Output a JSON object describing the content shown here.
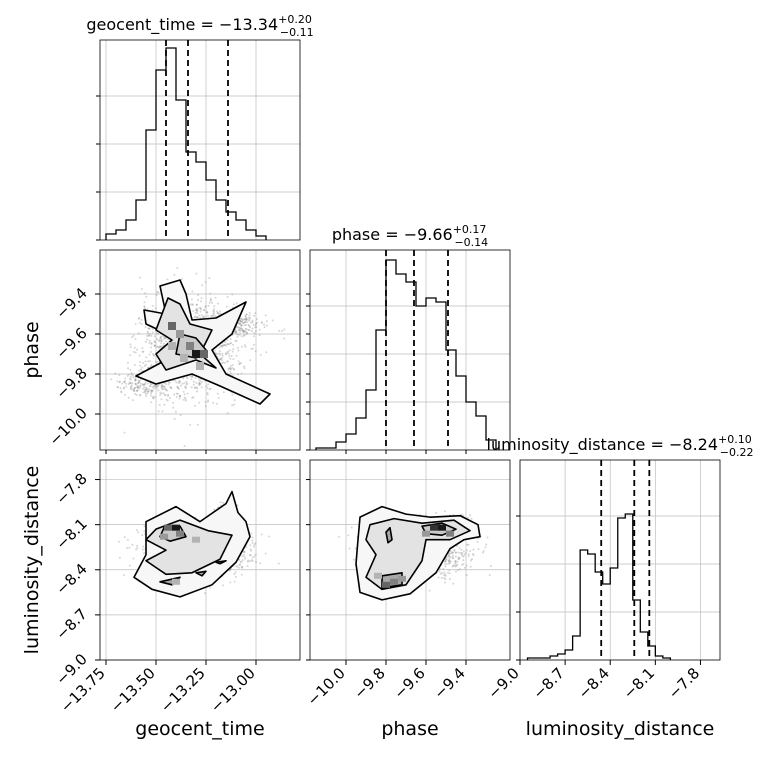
{
  "chart_data": {
    "type": "corner",
    "parameters": [
      "geocent_time",
      "phase",
      "luminosity_distance"
    ],
    "titles": [
      {
        "name": "geocent_time",
        "eq": " = −13.34",
        "plus": "+0.20",
        "minus": "−0.11"
      },
      {
        "name": "phase",
        "eq": " = −9.66",
        "plus": "+0.17",
        "minus": "−0.14"
      },
      {
        "name": "luminosity_distance",
        "eq": " = −8.24",
        "plus": "+0.10",
        "minus": "−0.22"
      }
    ],
    "ranges": [
      [
        -13.78,
        -12.78
      ],
      [
        -10.18,
        -9.18
      ],
      [
        -9.0,
        -7.67
      ]
    ],
    "ticks": [
      {
        "values": [
          -13.75,
          -13.5,
          -13.25,
          -13.0
        ],
        "labels": [
          "−13.75",
          "−13.50",
          "−13.25",
          "−13.00"
        ]
      },
      {
        "values": [
          -10.0,
          -9.8,
          -9.6,
          -9.4
        ],
        "labels": [
          "−10.0",
          "−9.8",
          "−9.6",
          "−9.4"
        ]
      },
      {
        "values": [
          -9.0,
          -8.7,
          -8.4,
          -8.1,
          -7.8
        ],
        "labels": [
          "−9.0",
          "−8.7",
          "−8.4",
          "−8.1",
          "−7.8"
        ]
      }
    ],
    "quantiles": [
      [
        -13.45,
        -13.34,
        -13.14
      ],
      [
        -9.8,
        -9.66,
        -9.49
      ],
      [
        -8.46,
        -8.24,
        -8.14
      ]
    ],
    "histograms": [
      {
        "bin_start": -13.75,
        "bin_width": 0.05,
        "counts": [
          0.03,
          0.05,
          0.1,
          0.2,
          0.55,
          0.85,
          0.96,
          0.7,
          0.44,
          0.39,
          0.3,
          0.2,
          0.14,
          0.1,
          0.05,
          0.02
        ]
      },
      {
        "bin_start": -10.15,
        "bin_width": 0.05,
        "counts": [
          0.01,
          0.01,
          0.04,
          0.08,
          0.16,
          0.3,
          0.6,
          0.95,
          0.88,
          0.84,
          0.72,
          0.76,
          0.74,
          0.5,
          0.37,
          0.24,
          0.17,
          0.05
        ]
      },
      {
        "bin_start": -8.95,
        "bin_width": 0.05,
        "counts": [
          0.01,
          0.01,
          0.01,
          0.02,
          0.03,
          0.05,
          0.12,
          0.55,
          0.53,
          0.44,
          0.38,
          0.46,
          0.71,
          0.73,
          0.3,
          0.14,
          0.07,
          0.02,
          0.01
        ]
      }
    ],
    "panels": [
      {
        "row": 1,
        "col": 0,
        "cluster": {
          "cx": -13.33,
          "cy": -9.67,
          "spread": [
            0.22,
            0.22
          ],
          "n": 1400
        },
        "extra": [
          {
            "cx": -13.1,
            "cy": -9.55,
            "spread": [
              0.15,
              0.05
            ],
            "n": 250
          },
          {
            "cx": -13.55,
            "cy": -9.85,
            "spread": [
              0.12,
              0.06
            ],
            "n": 200
          }
        ],
        "contours": [
          [
            [
              -13.48,
              -9.36
            ],
            [
              -13.38,
              -9.33
            ],
            [
              -13.35,
              -9.4
            ],
            [
              -13.32,
              -9.53
            ],
            [
              -13.2,
              -9.52
            ],
            [
              -13.05,
              -9.44
            ],
            [
              -13.12,
              -9.6
            ],
            [
              -13.22,
              -9.68
            ],
            [
              -13.15,
              -9.8
            ],
            [
              -12.93,
              -9.9
            ],
            [
              -12.98,
              -9.95
            ],
            [
              -13.18,
              -9.86
            ],
            [
              -13.32,
              -9.8
            ],
            [
              -13.5,
              -9.85
            ],
            [
              -13.6,
              -9.81
            ],
            [
              -13.45,
              -9.73
            ],
            [
              -13.4,
              -9.62
            ],
            [
              -13.55,
              -9.55
            ],
            [
              -13.56,
              -9.48
            ],
            [
              -13.45,
              -9.5
            ]
          ],
          [
            [
              -13.44,
              -9.42
            ],
            [
              -13.38,
              -9.45
            ],
            [
              -13.33,
              -9.55
            ],
            [
              -13.22,
              -9.58
            ],
            [
              -13.28,
              -9.7
            ],
            [
              -13.2,
              -9.77
            ],
            [
              -13.3,
              -9.73
            ],
            [
              -13.45,
              -9.78
            ],
            [
              -13.5,
              -9.7
            ],
            [
              -13.42,
              -9.63
            ],
            [
              -13.5,
              -9.58
            ]
          ],
          [
            [
              -13.38,
              -9.6
            ],
            [
              -13.3,
              -9.62
            ],
            [
              -13.25,
              -9.68
            ],
            [
              -13.3,
              -9.72
            ],
            [
              -13.4,
              -9.7
            ]
          ]
        ],
        "hist2d": [
          [
            -13.42,
            -9.56,
            0.6
          ],
          [
            -13.38,
            -9.6,
            0.4
          ],
          [
            -13.33,
            -9.66,
            0.5
          ],
          [
            -13.3,
            -9.7,
            0.9
          ],
          [
            -13.26,
            -9.7,
            0.6
          ],
          [
            -13.36,
            -9.72,
            0.3
          ],
          [
            -13.28,
            -9.76,
            0.3
          ],
          [
            -13.42,
            -9.66,
            0.3
          ]
        ]
      },
      {
        "row": 2,
        "col": 0,
        "cluster": {
          "cx": -13.3,
          "cy": -8.28,
          "spread": [
            0.22,
            0.15
          ],
          "n": 1400
        },
        "extra": [
          {
            "cx": -13.4,
            "cy": -8.45,
            "spread": [
              0.15,
              0.05
            ],
            "n": 300
          },
          {
            "cx": -13.15,
            "cy": -8.0,
            "spread": [
              0.05,
              0.06
            ],
            "n": 80
          }
        ],
        "contours": [
          [
            [
              -13.55,
              -8.08
            ],
            [
              -13.4,
              -7.98
            ],
            [
              -13.28,
              -8.08
            ],
            [
              -13.15,
              -7.96
            ],
            [
              -13.12,
              -7.88
            ],
            [
              -13.09,
              -8.02
            ],
            [
              -13.05,
              -8.08
            ],
            [
              -13.03,
              -8.18
            ],
            [
              -13.1,
              -8.35
            ],
            [
              -13.22,
              -8.5
            ],
            [
              -13.38,
              -8.58
            ],
            [
              -13.52,
              -8.53
            ],
            [
              -13.61,
              -8.45
            ],
            [
              -13.55,
              -8.3
            ]
          ],
          [
            [
              -13.5,
              -8.13
            ],
            [
              -13.38,
              -8.07
            ],
            [
              -13.24,
              -8.14
            ],
            [
              -13.12,
              -8.17
            ],
            [
              -13.18,
              -8.33
            ],
            [
              -13.32,
              -8.42
            ],
            [
              -13.45,
              -8.43
            ],
            [
              -13.55,
              -8.34
            ],
            [
              -13.45,
              -8.27
            ],
            [
              -13.55,
              -8.2
            ]
          ],
          [
            [
              -13.46,
              -8.12
            ],
            [
              -13.38,
              -8.11
            ],
            [
              -13.35,
              -8.18
            ],
            [
              -13.43,
              -8.21
            ],
            [
              -13.48,
              -8.18
            ]
          ],
          [
            [
              -13.48,
              -8.48
            ],
            [
              -13.38,
              -8.45
            ],
            [
              -13.42,
              -8.5
            ]
          ],
          [
            [
              -13.3,
              -8.42
            ],
            [
              -13.25,
              -8.41
            ],
            [
              -13.27,
              -8.44
            ]
          ],
          [
            [
              -13.2,
              -8.35
            ],
            [
              -13.15,
              -8.34
            ],
            [
              -13.18,
              -8.36
            ]
          ]
        ],
        "hist2d": [
          [
            -13.44,
            -8.12,
            0.6
          ],
          [
            -13.4,
            -8.12,
            0.9
          ],
          [
            -13.38,
            -8.16,
            0.5
          ],
          [
            -13.46,
            -8.18,
            0.4
          ],
          [
            -13.3,
            -8.2,
            0.3
          ],
          [
            -13.4,
            -8.48,
            0.3
          ]
        ]
      },
      {
        "row": 2,
        "col": 1,
        "cluster": {
          "cx": -9.65,
          "cy": -8.28,
          "spread": [
            0.22,
            0.15
          ],
          "n": 1400
        },
        "extra": [
          {
            "cx": -9.78,
            "cy": -8.5,
            "spread": [
              0.1,
              0.05
            ],
            "n": 300
          },
          {
            "cx": -9.52,
            "cy": -8.1,
            "spread": [
              0.1,
              0.05
            ],
            "n": 300
          }
        ],
        "contours": [
          [
            [
              -9.93,
              -8.05
            ],
            [
              -9.82,
              -7.98
            ],
            [
              -9.7,
              -8.03
            ],
            [
              -9.58,
              -8.05
            ],
            [
              -9.43,
              -8.04
            ],
            [
              -9.34,
              -8.1
            ],
            [
              -9.33,
              -8.18
            ],
            [
              -9.41,
              -8.2
            ],
            [
              -9.48,
              -8.26
            ],
            [
              -9.55,
              -8.42
            ],
            [
              -9.68,
              -8.56
            ],
            [
              -9.82,
              -8.6
            ],
            [
              -9.93,
              -8.55
            ],
            [
              -9.95,
              -8.36
            ],
            [
              -9.94,
              -8.2
            ]
          ],
          [
            [
              -9.88,
              -8.1
            ],
            [
              -9.76,
              -8.06
            ],
            [
              -9.62,
              -8.09
            ],
            [
              -9.46,
              -8.07
            ],
            [
              -9.38,
              -8.14
            ],
            [
              -9.48,
              -8.2
            ],
            [
              -9.6,
              -8.2
            ],
            [
              -9.62,
              -8.34
            ],
            [
              -9.7,
              -8.5
            ],
            [
              -9.82,
              -8.53
            ],
            [
              -9.9,
              -8.45
            ],
            [
              -9.85,
              -8.3
            ],
            [
              -9.9,
              -8.2
            ]
          ],
          [
            [
              -9.62,
              -8.11
            ],
            [
              -9.52,
              -8.09
            ],
            [
              -9.45,
              -8.13
            ],
            [
              -9.52,
              -8.17
            ],
            [
              -9.6,
              -8.16
            ]
          ],
          [
            [
              -9.82,
              -8.44
            ],
            [
              -9.72,
              -8.42
            ],
            [
              -9.72,
              -8.5
            ],
            [
              -9.82,
              -8.52
            ]
          ],
          [
            [
              -9.8,
              -8.15
            ],
            [
              -9.78,
              -8.12
            ],
            [
              -9.77,
              -8.2
            ],
            [
              -9.79,
              -8.22
            ]
          ]
        ],
        "hist2d": [
          [
            -9.56,
            -8.12,
            0.8
          ],
          [
            -9.52,
            -8.12,
            0.9
          ],
          [
            -9.48,
            -8.16,
            0.5
          ],
          [
            -9.6,
            -8.16,
            0.4
          ],
          [
            -9.8,
            -8.5,
            0.6
          ],
          [
            -9.76,
            -8.48,
            0.5
          ],
          [
            -9.72,
            -8.46,
            0.4
          ],
          [
            -9.84,
            -8.44,
            0.3
          ]
        ]
      }
    ]
  }
}
